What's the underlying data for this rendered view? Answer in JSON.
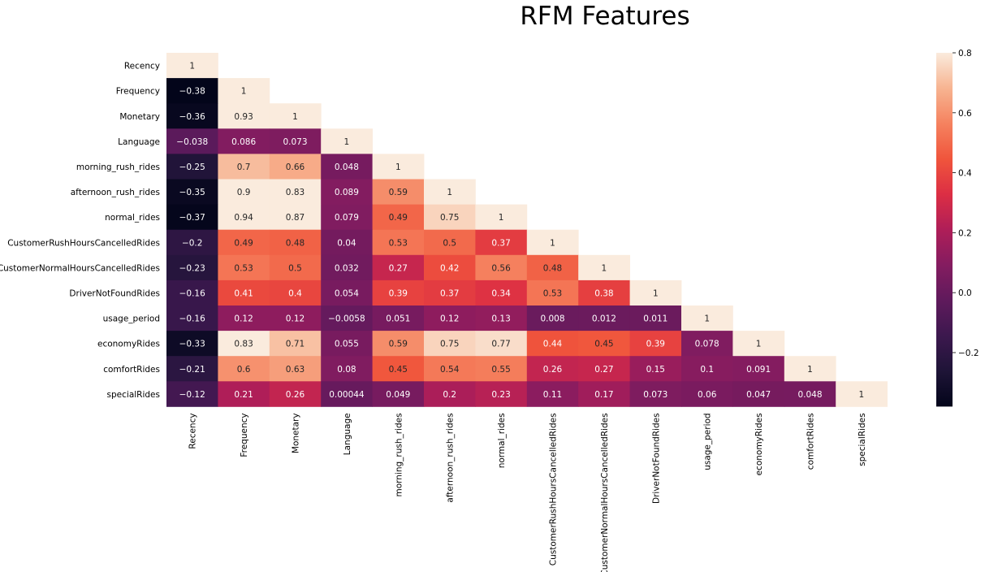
{
  "chart_data": {
    "type": "heatmap",
    "title": "RFM Features",
    "variables": [
      "Recency",
      "Frequency",
      "Monetary",
      "Language",
      "morning_rush_rides",
      "afternoon_rush_rides",
      "normal_rides",
      "CustomerRushHoursCancelledRides",
      "CustomerNormalHoursCancelledRides",
      "DriverNotFoundRides",
      "usage_period",
      "economyRides",
      "comfortRides",
      "specialRides"
    ],
    "matrix": [
      [
        1
      ],
      [
        -0.38,
        1
      ],
      [
        -0.36,
        0.93,
        1
      ],
      [
        -0.038,
        0.086,
        0.073,
        1
      ],
      [
        -0.25,
        0.7,
        0.66,
        0.048,
        1
      ],
      [
        -0.35,
        0.9,
        0.83,
        0.089,
        0.59,
        1
      ],
      [
        -0.37,
        0.94,
        0.87,
        0.079,
        0.49,
        0.75,
        1
      ],
      [
        -0.2,
        0.49,
        0.48,
        0.04,
        0.53,
        0.5,
        0.37,
        1
      ],
      [
        -0.23,
        0.53,
        0.5,
        0.032,
        0.27,
        0.42,
        0.56,
        0.48,
        1
      ],
      [
        -0.16,
        0.41,
        0.4,
        0.054,
        0.39,
        0.37,
        0.34,
        0.53,
        0.38,
        1
      ],
      [
        -0.16,
        0.12,
        0.12,
        -0.0058,
        0.051,
        0.12,
        0.13,
        0.008,
        0.012,
        0.011,
        1
      ],
      [
        -0.33,
        0.83,
        0.71,
        0.055,
        0.59,
        0.75,
        0.77,
        0.44,
        0.45,
        0.39,
        0.078,
        1
      ],
      [
        -0.21,
        0.6,
        0.63,
        0.08,
        0.45,
        0.54,
        0.55,
        0.26,
        0.27,
        0.15,
        0.1,
        0.091,
        1
      ],
      [
        -0.12,
        0.21,
        0.26,
        0.00044,
        0.049,
        0.2,
        0.23,
        0.11,
        0.17,
        0.073,
        0.06,
        0.047,
        0.048,
        1
      ]
    ],
    "mask": "upper-triangle",
    "colormap": "rocket",
    "vmin": -0.38,
    "vmax": 0.8,
    "colorbar_ticks": [
      0.8,
      0.6,
      0.4,
      0.2,
      0.0,
      -0.2
    ],
    "colorbar_tick_labels": [
      "0.8",
      "0.6",
      "0.4",
      "0.2",
      "0.0",
      "−0.2"
    ],
    "annotations": true,
    "grid": false,
    "legend": "right colorbar"
  }
}
